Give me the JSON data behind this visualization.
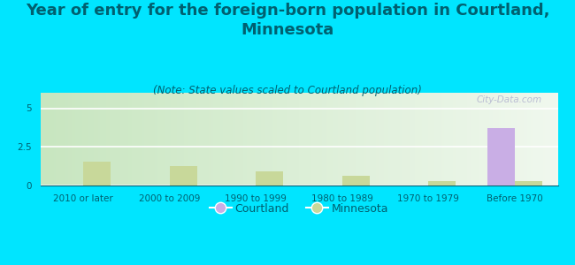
{
  "title": "Year of entry for the foreign-born population in Courtland,\nMinnesota",
  "subtitle": "(Note: State values scaled to Courtland population)",
  "categories": [
    "2010 or later",
    "2000 to 2009",
    "1990 to 1999",
    "1980 to 1989",
    "1970 to 1979",
    "Before 1970"
  ],
  "courtland_values": [
    0,
    0,
    0,
    0,
    0,
    3.7
  ],
  "minnesota_values": [
    1.55,
    1.25,
    0.9,
    0.65,
    0.28,
    0.28
  ],
  "courtland_color": "#c9aee5",
  "minnesota_color": "#c8d89a",
  "background_color": "#00e5ff",
  "ylim": [
    0,
    6
  ],
  "yticks": [
    0,
    2.5,
    5
  ],
  "bar_width": 0.32,
  "title_fontsize": 13,
  "subtitle_fontsize": 8.5,
  "tick_fontsize": 7.5,
  "legend_fontsize": 9,
  "watermark": "City-Data.com",
  "title_color": "#006070",
  "subtitle_color": "#006070",
  "tick_color": "#006070",
  "grid_color": "#ffffff",
  "plot_bg_left": "#c8e6c0",
  "plot_bg_right": "#f0f8ee"
}
